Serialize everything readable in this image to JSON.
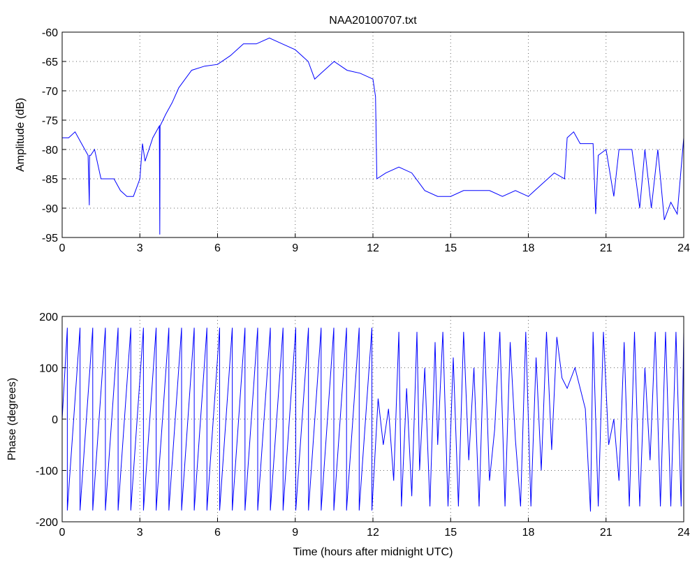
{
  "chart_data": [
    {
      "type": "line",
      "title": "NAA20100707.txt",
      "y_label": "Amplitude (dB)",
      "xlim": [
        0,
        24
      ],
      "xticks": [
        0,
        3,
        6,
        9,
        12,
        15,
        18,
        21,
        24
      ],
      "ylim": [
        -95,
        -60
      ],
      "yticks": [
        -95,
        -90,
        -85,
        -80,
        -75,
        -70,
        -65,
        -60
      ],
      "grid": true,
      "series": [
        {
          "color": "#0000ff",
          "x": [
            0,
            0.25,
            0.5,
            0.75,
            1.0,
            1.05,
            1.06,
            1.1,
            1.25,
            1.5,
            1.75,
            2.0,
            2.25,
            2.5,
            2.75,
            3.0,
            3.1,
            3.2,
            3.5,
            3.75,
            3.77,
            3.78,
            4.0,
            4.25,
            4.5,
            4.75,
            5.0,
            5.5,
            6.0,
            6.5,
            7.0,
            7.5,
            8.0,
            8.5,
            9.0,
            9.5,
            9.75,
            10.0,
            10.5,
            11.0,
            11.5,
            12.0,
            12.1,
            12.15,
            12.5,
            13.0,
            13.5,
            14.0,
            14.5,
            15.0,
            15.5,
            16.0,
            16.5,
            17.0,
            17.5,
            18.0,
            18.5,
            19.0,
            19.4,
            19.5,
            19.75,
            20.0,
            20.5,
            20.6,
            20.7,
            21.0,
            21.3,
            21.5,
            22.0,
            22.3,
            22.5,
            22.75,
            23.0,
            23.25,
            23.5,
            23.75,
            24.0
          ],
          "values": [
            -78,
            -78,
            -77,
            -79,
            -81,
            -89.5,
            -81,
            -81,
            -80,
            -85,
            -85,
            -85,
            -87,
            -88,
            -88,
            -85,
            -79,
            -82,
            -78,
            -76,
            -94.5,
            -76,
            -74,
            -72,
            -69.5,
            -68,
            -66.5,
            -65.8,
            -65.5,
            -64,
            -62,
            -62,
            -61,
            -62,
            -63,
            -65,
            -68,
            -67,
            -65,
            -66.5,
            -67,
            -68,
            -71,
            -85,
            -84,
            -83,
            -84,
            -87,
            -88,
            -88,
            -87,
            -87,
            -87,
            -88,
            -87,
            -88,
            -86,
            -84,
            -85,
            -78,
            -77,
            -79,
            -79,
            -91,
            -81,
            -80,
            -88,
            -80,
            -80,
            -90,
            -80,
            -90,
            -80,
            -92,
            -89,
            -91,
            -78
          ]
        }
      ]
    },
    {
      "type": "line",
      "x_label": "Time (hours after midnight UTC)",
      "y_label": "Phase (degrees)",
      "xlim": [
        0,
        24
      ],
      "xticks": [
        0,
        3,
        6,
        9,
        12,
        15,
        18,
        21,
        24
      ],
      "ylim": [
        -200,
        200
      ],
      "yticks": [
        -200,
        -100,
        0,
        100,
        200
      ],
      "grid": true,
      "series": [
        {
          "color": "#0000ff",
          "x": [
            0,
            0.2,
            0.2,
            0.69,
            0.69,
            1.18,
            1.18,
            1.67,
            1.67,
            2.16,
            2.16,
            2.65,
            2.65,
            3.14,
            3.14,
            3.63,
            3.63,
            4.12,
            4.12,
            4.61,
            4.61,
            5.1,
            5.1,
            5.59,
            5.59,
            6.08,
            6.08,
            6.57,
            6.57,
            7.06,
            7.06,
            7.55,
            7.55,
            8.04,
            8.04,
            8.53,
            8.53,
            9.02,
            9.02,
            9.51,
            9.51,
            10.0,
            10.0,
            10.49,
            10.49,
            10.98,
            10.98,
            11.47,
            11.47,
            11.96,
            11.96,
            12.2,
            12.4,
            12.6,
            12.8,
            13.0,
            13.1,
            13.3,
            13.5,
            13.7,
            13.8,
            14.0,
            14.2,
            14.4,
            14.5,
            14.7,
            14.9,
            15.1,
            15.3,
            15.5,
            15.7,
            15.9,
            16.1,
            16.3,
            16.5,
            16.7,
            16.9,
            17.1,
            17.3,
            17.5,
            17.7,
            17.9,
            18.1,
            18.3,
            18.5,
            18.7,
            18.9,
            19.1,
            19.3,
            19.5,
            19.8,
            20.0,
            20.2,
            20.4,
            20.5,
            20.7,
            20.9,
            21.1,
            21.3,
            21.5,
            21.7,
            21.9,
            22.1,
            22.3,
            22.5,
            22.7,
            22.9,
            23.1,
            23.3,
            23.5,
            23.7,
            23.9,
            24.0
          ],
          "values": [
            0,
            178,
            -178,
            178,
            -178,
            178,
            -178,
            178,
            -178,
            178,
            -178,
            178,
            -178,
            178,
            -178,
            178,
            -178,
            178,
            -178,
            178,
            -178,
            178,
            -178,
            178,
            -178,
            178,
            -178,
            178,
            -178,
            178,
            -178,
            178,
            -178,
            178,
            -178,
            178,
            -178,
            178,
            -178,
            178,
            -178,
            178,
            -178,
            178,
            -178,
            178,
            -178,
            178,
            -178,
            178,
            -178,
            40,
            -50,
            20,
            -120,
            170,
            -170,
            60,
            -150,
            170,
            -100,
            100,
            -170,
            150,
            -50,
            170,
            -170,
            120,
            -170,
            170,
            -80,
            100,
            -170,
            170,
            -120,
            -20,
            170,
            -170,
            150,
            -40,
            -170,
            170,
            -170,
            120,
            -100,
            170,
            -60,
            160,
            80,
            60,
            100,
            60,
            20,
            -180,
            170,
            -170,
            170,
            -50,
            0,
            -120,
            150,
            -170,
            170,
            -170,
            100,
            -80,
            170,
            -170,
            170,
            -170,
            170,
            -170,
            170
          ]
        }
      ]
    }
  ]
}
